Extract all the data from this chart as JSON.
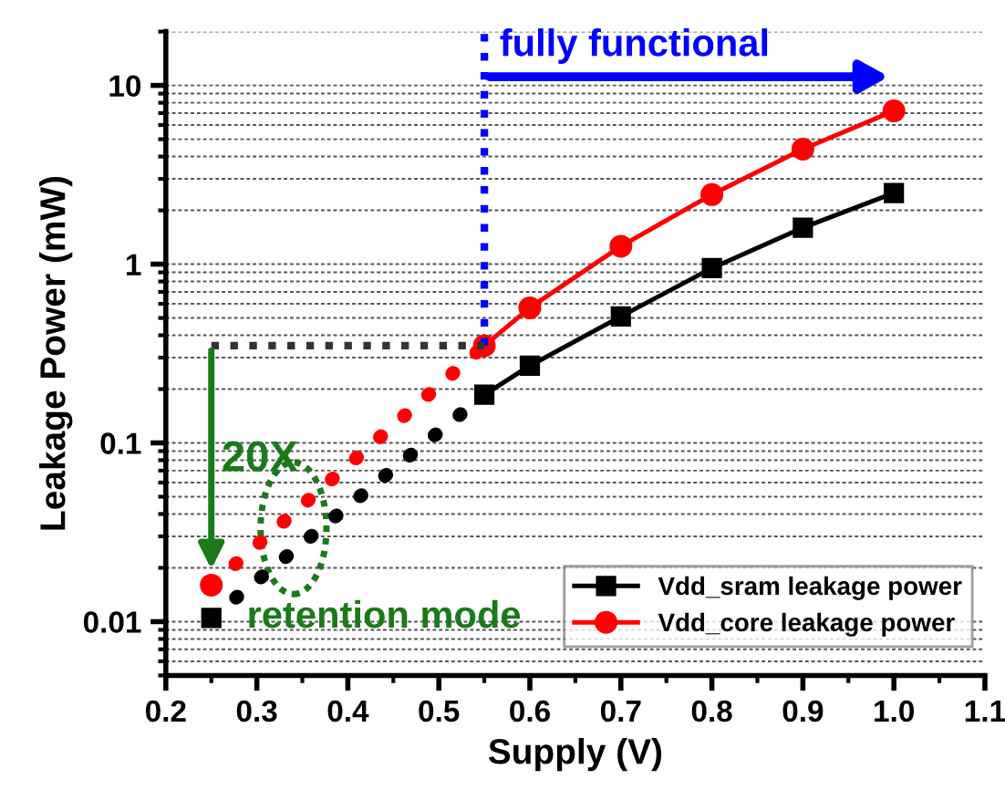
{
  "chart_data": {
    "type": "line",
    "xlabel": "Supply (V)",
    "ylabel": "Leakage Power (mW)",
    "log": "y",
    "xlim": [
      0.2,
      1.1
    ],
    "xticks": [
      {
        "value": 0.2,
        "label": "0.2"
      },
      {
        "value": 0.3,
        "label": "0.3"
      },
      {
        "value": 0.4,
        "label": "0.4"
      },
      {
        "value": 0.5,
        "label": "0.5"
      },
      {
        "value": 0.6,
        "label": "0.6"
      },
      {
        "value": 0.7,
        "label": "0.7"
      },
      {
        "value": 0.8,
        "label": "0.8"
      },
      {
        "value": 0.9,
        "label": "0.9"
      },
      {
        "value": 1.0,
        "label": "1.0"
      },
      {
        "value": 1.1,
        "label": "1.1"
      }
    ],
    "ylim": [
      0.005,
      20
    ],
    "yticks": [
      0.01,
      0.1,
      1,
      10
    ],
    "grid": "y",
    "legend": "bottom right",
    "line_style": "solid",
    "series": [
      {
        "name": "Vdd_sram leakage power",
        "color": "#000000",
        "marker": "square",
        "x": [
          0.55,
          0.6,
          0.7,
          0.8,
          0.9,
          1.0
        ],
        "values": [
          0.186,
          0.27,
          0.51,
          0.95,
          1.6,
          2.5
        ]
      },
      {
        "name": "Vdd_core leakage power",
        "color": "#ff0000",
        "marker": "circle",
        "x": [
          0.55,
          0.6,
          0.7,
          0.8,
          0.9,
          1.0
        ],
        "values": [
          0.35,
          0.57,
          1.26,
          2.45,
          4.4,
          7.2
        ]
      },
      {
        "color": "#000000",
        "marker": "square",
        "line_style": "dotted",
        "x": [
          0.25,
          0.55
        ],
        "values": [
          0.0105,
          0.186
        ]
      },
      {
        "color": "#ff0000",
        "marker": "circle",
        "line_style": "dotted",
        "x": [
          0.25,
          0.55
        ],
        "values": [
          0.016,
          0.35
        ]
      },
      {
        "color": "#0000ff",
        "marker": "none",
        "line_style": "dotted",
        "x": [
          0.55,
          0.55
        ],
        "values": [
          0.35,
          20
        ]
      },
      {
        "color": "#333333",
        "marker": "none",
        "line_style": "dotted",
        "x": [
          0.25,
          0.55
        ],
        "values": [
          0.35,
          0.35
        ]
      }
    ],
    "annotations": [
      "fully functional",
      "20X",
      "retention mode"
    ]
  }
}
